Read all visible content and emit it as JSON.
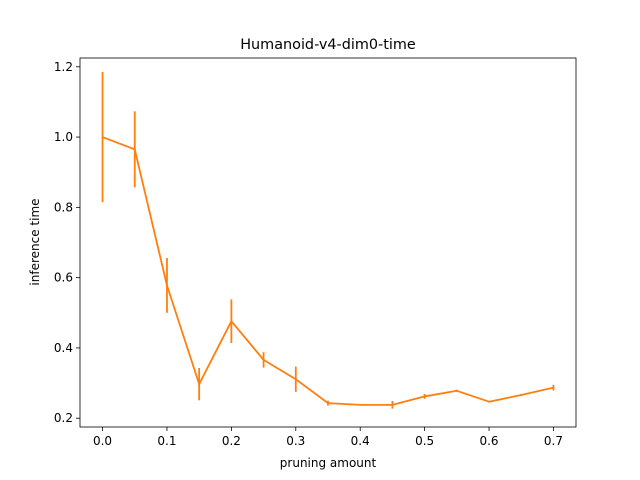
{
  "chart_data": {
    "type": "line",
    "title": "Humanoid-v4-dim0-time",
    "xlabel": "pruning amount",
    "ylabel": "inference time",
    "xlim": [
      -0.035,
      0.735
    ],
    "ylim": [
      0.175,
      1.225
    ],
    "xticks": [
      0.0,
      0.1,
      0.2,
      0.3,
      0.4,
      0.5,
      0.6,
      0.7
    ],
    "xtick_labels": [
      "0.0",
      "0.1",
      "0.2",
      "0.3",
      "0.4",
      "0.5",
      "0.6",
      "0.7"
    ],
    "yticks": [
      0.2,
      0.4,
      0.6,
      0.8,
      1.0,
      1.2
    ],
    "ytick_labels": [
      "0.2",
      "0.4",
      "0.6",
      "0.8",
      "1.0",
      "1.2"
    ],
    "grid": false,
    "legend": "none",
    "series": [
      {
        "color": "#ff7f0e",
        "x": [
          0.0,
          0.05,
          0.1,
          0.15,
          0.2,
          0.25,
          0.3,
          0.35,
          0.4,
          0.45,
          0.5,
          0.55,
          0.6,
          0.65,
          0.7
        ],
        "y": [
          1.0,
          0.965,
          0.578,
          0.297,
          0.476,
          0.366,
          0.311,
          0.243,
          0.238,
          0.238,
          0.262,
          0.278,
          0.247,
          0.266,
          0.287
        ],
        "err": [
          0.185,
          0.108,
          0.078,
          0.046,
          0.062,
          0.022,
          0.036,
          0.007,
          0.002,
          0.011,
          0.007,
          0.003,
          0.002,
          0.003,
          0.008
        ]
      }
    ]
  }
}
